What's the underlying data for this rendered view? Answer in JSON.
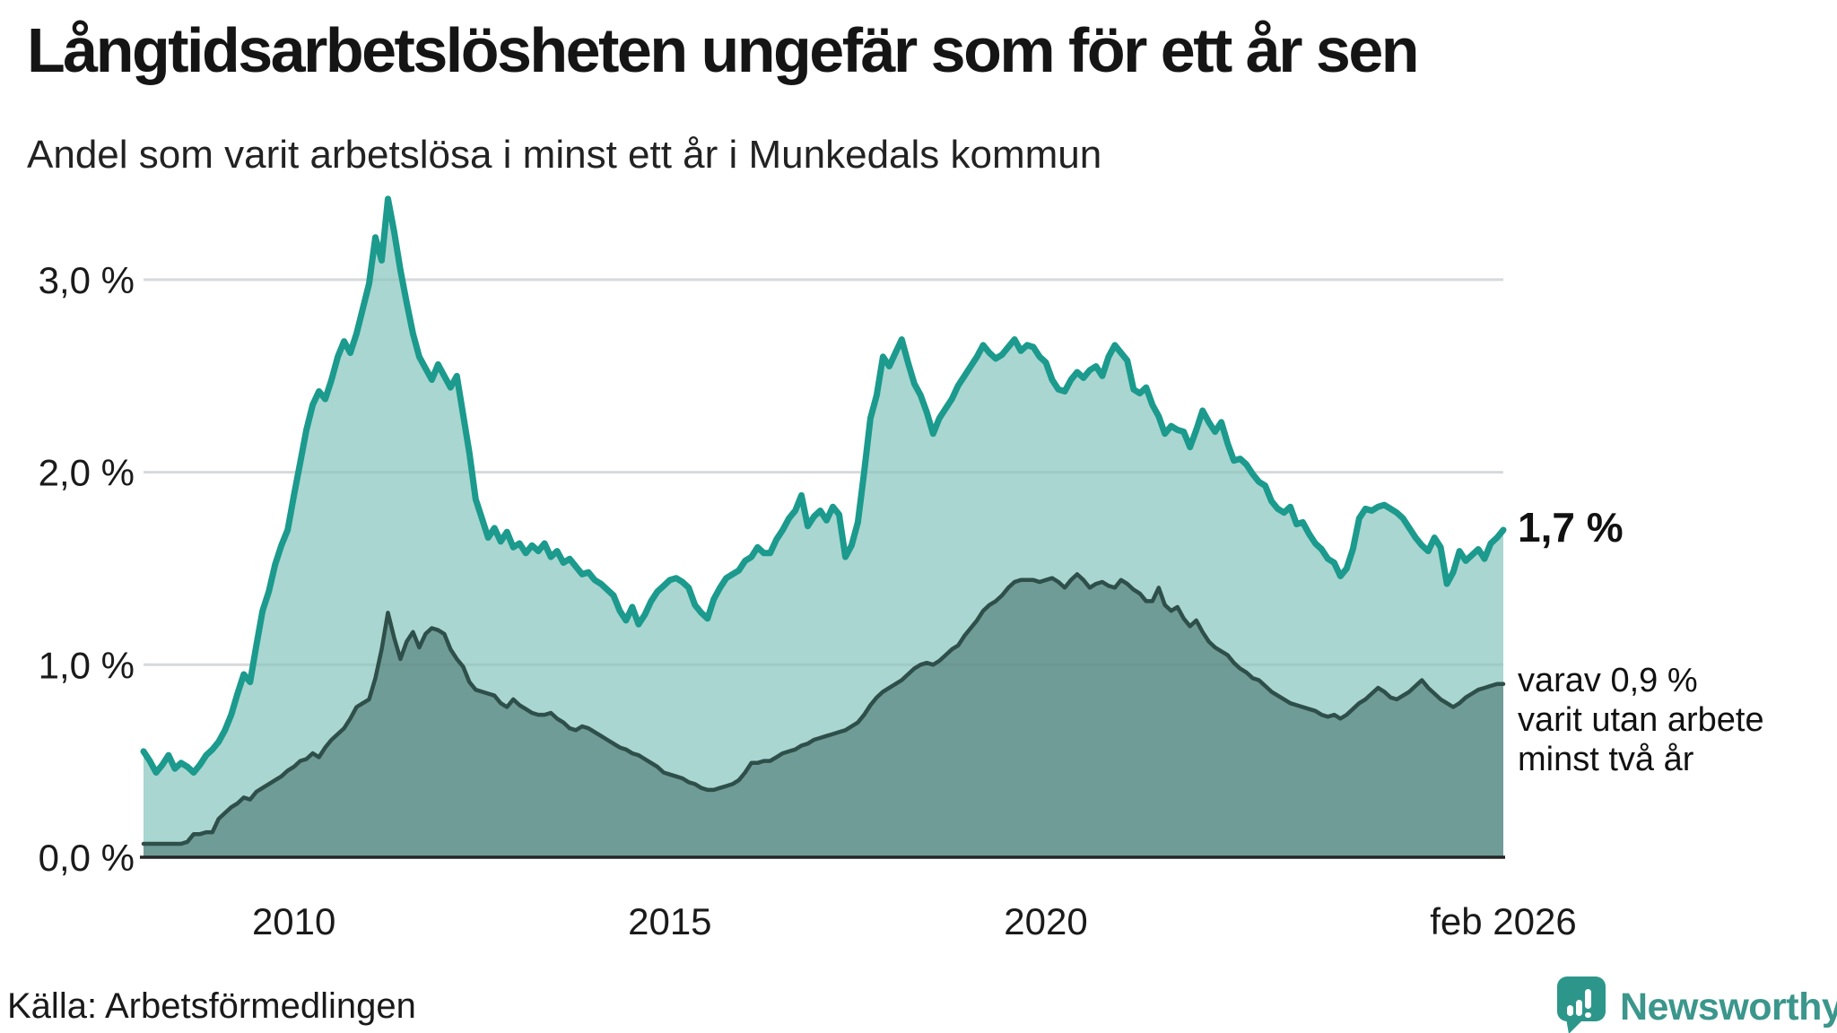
{
  "header": {
    "title": "Långtidsarbetslösheten ungefär som för ett år sen",
    "subtitle": "Andel som varit arbetslösa i minst ett år i Munkedals kommun"
  },
  "annotations": {
    "latest_total": "1,7 %",
    "latest_two_years_lines": [
      "varav 0,9 %",
      "varit utan arbete",
      "minst två år"
    ]
  },
  "source": {
    "label": "Källa: Arbetsförmedlingen"
  },
  "branding": {
    "name": "Newsworthy",
    "icon": "newsworthy-speech-bubble-chart-icon",
    "color": "#3b968c"
  },
  "colors": {
    "series1_line": "#1b9a8d",
    "series1_fill": "#a9d6d0",
    "series2_line": "#2e4f4a",
    "series2_fill": "#6f9c96",
    "grid": "#e7e7e9",
    "grid_overlay": "rgba(80,95,105,0.10)",
    "baseline": "#242424",
    "text": "#1a1a1a"
  },
  "chart_data": {
    "type": "area",
    "title": "Långtidsarbetslösheten ungefär som för ett år sen",
    "subtitle": "Andel som varit arbetslösa i minst ett år i Munkedals kommun",
    "xlabel": "",
    "ylabel": "",
    "grid": "horizontal",
    "legend_position": "none",
    "xlim": [
      2008.0,
      2026.0833
    ],
    "ylim": [
      0,
      3.5
    ],
    "x_start_year": 2008.0,
    "x_step_years": 0.0833333,
    "x_ticks": [
      {
        "value": 2010,
        "label": "2010"
      },
      {
        "value": 2015,
        "label": "2015"
      },
      {
        "value": 2020,
        "label": "2020"
      },
      {
        "value": 2026.0833,
        "label": "feb 2026"
      }
    ],
    "y_ticks": [
      {
        "value": 0,
        "label": "0,0 %"
      },
      {
        "value": 1,
        "label": "1,0 %"
      },
      {
        "value": 2,
        "label": "2,0 %"
      },
      {
        "value": 3,
        "label": "3,0 %"
      }
    ],
    "series": [
      {
        "name": "Andel arbetslösa minst ett år",
        "last_label": "1,7 %",
        "values": [
          0.55,
          0.5,
          0.44,
          0.48,
          0.53,
          0.46,
          0.49,
          0.47,
          0.44,
          0.48,
          0.53,
          0.56,
          0.6,
          0.66,
          0.74,
          0.85,
          0.95,
          0.91,
          1.1,
          1.28,
          1.38,
          1.52,
          1.62,
          1.7,
          1.88,
          2.05,
          2.22,
          2.35,
          2.42,
          2.38,
          2.48,
          2.6,
          2.68,
          2.62,
          2.72,
          2.85,
          2.98,
          3.22,
          3.1,
          3.42,
          3.25,
          3.05,
          2.88,
          2.72,
          2.6,
          2.54,
          2.48,
          2.56,
          2.5,
          2.44,
          2.5,
          2.3,
          2.1,
          1.86,
          1.76,
          1.66,
          1.71,
          1.64,
          1.69,
          1.61,
          1.63,
          1.58,
          1.62,
          1.59,
          1.63,
          1.56,
          1.59,
          1.53,
          1.55,
          1.51,
          1.47,
          1.48,
          1.44,
          1.42,
          1.39,
          1.36,
          1.28,
          1.23,
          1.3,
          1.21,
          1.26,
          1.33,
          1.38,
          1.41,
          1.44,
          1.45,
          1.43,
          1.4,
          1.31,
          1.27,
          1.24,
          1.34,
          1.4,
          1.45,
          1.47,
          1.49,
          1.54,
          1.56,
          1.61,
          1.58,
          1.58,
          1.65,
          1.7,
          1.76,
          1.8,
          1.88,
          1.72,
          1.77,
          1.8,
          1.75,
          1.82,
          1.78,
          1.56,
          1.62,
          1.74,
          2.0,
          2.28,
          2.4,
          2.6,
          2.55,
          2.62,
          2.69,
          2.57,
          2.46,
          2.4,
          2.31,
          2.2,
          2.28,
          2.33,
          2.38,
          2.45,
          2.5,
          2.55,
          2.6,
          2.66,
          2.62,
          2.59,
          2.61,
          2.65,
          2.69,
          2.63,
          2.66,
          2.65,
          2.6,
          2.57,
          2.48,
          2.43,
          2.42,
          2.48,
          2.52,
          2.49,
          2.53,
          2.55,
          2.5,
          2.6,
          2.66,
          2.62,
          2.58,
          2.43,
          2.41,
          2.44,
          2.35,
          2.29,
          2.2,
          2.24,
          2.22,
          2.21,
          2.13,
          2.22,
          2.32,
          2.26,
          2.21,
          2.26,
          2.15,
          2.06,
          2.07,
          2.04,
          1.99,
          1.95,
          1.93,
          1.85,
          1.81,
          1.79,
          1.82,
          1.73,
          1.74,
          1.68,
          1.63,
          1.6,
          1.55,
          1.53,
          1.46,
          1.5,
          1.6,
          1.76,
          1.81,
          1.8,
          1.82,
          1.83,
          1.81,
          1.79,
          1.76,
          1.71,
          1.66,
          1.62,
          1.59,
          1.66,
          1.61,
          1.42,
          1.48,
          1.59,
          1.54,
          1.57,
          1.6,
          1.55,
          1.63,
          1.66,
          1.7
        ]
      },
      {
        "name": "varav arbetslösa minst två år",
        "last_label": "0,9 %",
        "values": [
          0.07,
          0.07,
          0.07,
          0.07,
          0.07,
          0.07,
          0.07,
          0.08,
          0.12,
          0.12,
          0.13,
          0.13,
          0.2,
          0.23,
          0.26,
          0.28,
          0.31,
          0.3,
          0.34,
          0.36,
          0.38,
          0.4,
          0.42,
          0.45,
          0.47,
          0.5,
          0.51,
          0.54,
          0.52,
          0.57,
          0.61,
          0.64,
          0.67,
          0.72,
          0.78,
          0.8,
          0.82,
          0.93,
          1.08,
          1.27,
          1.14,
          1.03,
          1.12,
          1.17,
          1.09,
          1.16,
          1.19,
          1.18,
          1.16,
          1.08,
          1.03,
          0.99,
          0.91,
          0.87,
          0.86,
          0.85,
          0.84,
          0.8,
          0.78,
          0.82,
          0.79,
          0.77,
          0.75,
          0.74,
          0.74,
          0.75,
          0.72,
          0.7,
          0.67,
          0.66,
          0.68,
          0.67,
          0.65,
          0.63,
          0.61,
          0.59,
          0.57,
          0.56,
          0.54,
          0.53,
          0.51,
          0.49,
          0.47,
          0.44,
          0.43,
          0.42,
          0.41,
          0.39,
          0.38,
          0.36,
          0.35,
          0.35,
          0.36,
          0.37,
          0.38,
          0.4,
          0.44,
          0.49,
          0.49,
          0.5,
          0.5,
          0.52,
          0.54,
          0.55,
          0.56,
          0.58,
          0.59,
          0.61,
          0.62,
          0.63,
          0.64,
          0.65,
          0.66,
          0.68,
          0.7,
          0.74,
          0.79,
          0.83,
          0.86,
          0.88,
          0.9,
          0.92,
          0.95,
          0.98,
          1.0,
          1.01,
          1.0,
          1.02,
          1.05,
          1.08,
          1.1,
          1.15,
          1.19,
          1.23,
          1.28,
          1.31,
          1.33,
          1.36,
          1.4,
          1.43,
          1.44,
          1.44,
          1.44,
          1.43,
          1.44,
          1.45,
          1.43,
          1.4,
          1.44,
          1.47,
          1.44,
          1.4,
          1.42,
          1.43,
          1.41,
          1.4,
          1.44,
          1.42,
          1.39,
          1.37,
          1.33,
          1.33,
          1.4,
          1.31,
          1.28,
          1.3,
          1.24,
          1.2,
          1.23,
          1.17,
          1.12,
          1.09,
          1.07,
          1.05,
          1.01,
          0.98,
          0.96,
          0.93,
          0.92,
          0.89,
          0.86,
          0.84,
          0.82,
          0.8,
          0.79,
          0.78,
          0.77,
          0.76,
          0.74,
          0.73,
          0.74,
          0.72,
          0.74,
          0.77,
          0.8,
          0.82,
          0.85,
          0.88,
          0.86,
          0.83,
          0.82,
          0.84,
          0.86,
          0.89,
          0.92,
          0.88,
          0.85,
          0.82,
          0.8,
          0.78,
          0.8,
          0.83,
          0.85,
          0.87,
          0.88,
          0.89,
          0.9,
          0.9
        ]
      }
    ]
  }
}
